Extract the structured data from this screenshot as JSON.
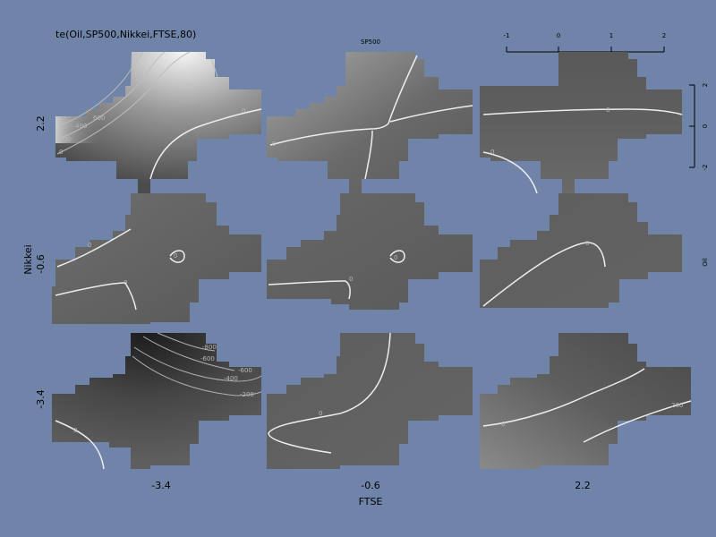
{
  "chart_data": {
    "type": "heatmap",
    "title": "te(Oil,SP500,Nikkei,FTSE,80)",
    "xlabel": "FTSE",
    "ylabel": "Nikkei",
    "xlevels": [
      "-3.4",
      "-0.6",
      "2.2"
    ],
    "ylevels": [
      "2.2",
      "-0.6",
      "-3.4"
    ],
    "inner_x_axis": {
      "label": "SP500",
      "ticks": [
        "-1",
        "0",
        "1",
        "2"
      ]
    },
    "inner_y_axis": {
      "label": "Oil",
      "ticks": [
        "2",
        "0",
        "-2"
      ]
    },
    "panels": [
      {
        "ftse": "-3.4",
        "nikkei": "2.2",
        "contour_labels": [
          "0",
          "200",
          "400",
          "600",
          "0"
        ]
      },
      {
        "ftse": "-0.6",
        "nikkei": "2.2",
        "contour_labels": [
          "0"
        ]
      },
      {
        "ftse": "2.2",
        "nikkei": "2.2",
        "contour_labels": [
          "0",
          "0"
        ]
      },
      {
        "ftse": "-3.4",
        "nikkei": "-0.6",
        "contour_labels": [
          "0",
          "0",
          "0"
        ]
      },
      {
        "ftse": "-0.6",
        "nikkei": "-0.6",
        "contour_labels": [
          "0",
          "0"
        ]
      },
      {
        "ftse": "2.2",
        "nikkei": "-0.6",
        "contour_labels": [
          "0"
        ]
      },
      {
        "ftse": "-3.4",
        "nikkei": "-3.4",
        "contour_labels": [
          "-800",
          "-600",
          "-400",
          "-200",
          "-600",
          "0"
        ]
      },
      {
        "ftse": "-0.6",
        "nikkei": "-3.4",
        "contour_labels": [
          "0"
        ]
      },
      {
        "ftse": "2.2",
        "nikkei": "-3.4",
        "contour_labels": [
          "0",
          "200"
        ]
      }
    ]
  }
}
